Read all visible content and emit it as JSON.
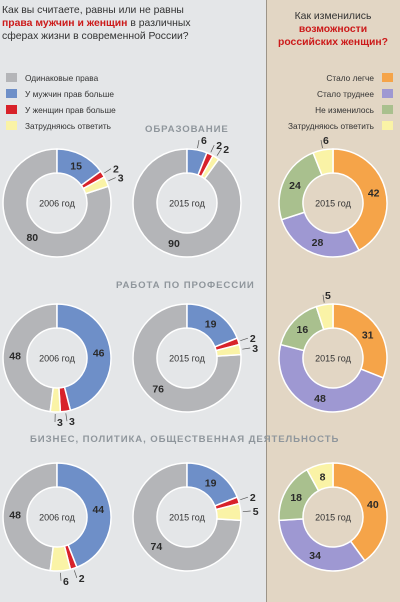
{
  "left_question": {
    "part1": "Как вы считаете, равны или не равны",
    "highlight": "права мужчин и женщин",
    "part2": " в различных",
    "line3": "сферах жизни в современной России?"
  },
  "right_question": {
    "line1": "Как изменились",
    "highlight1": "возможности",
    "highlight2": "российских женщин?"
  },
  "legend_left": [
    {
      "label": "Одинаковые права",
      "color": "#b4b5b8"
    },
    {
      "label": "У мужчин прав больше",
      "color": "#6e8fc8"
    },
    {
      "label": "У женщин прав больше",
      "color": "#d8222a"
    },
    {
      "label": "Затрудняюсь ответить",
      "color": "#faf3a6"
    }
  ],
  "legend_right": [
    {
      "label": "Стало легче",
      "color": "#f5a449"
    },
    {
      "label": "Стало труднее",
      "color": "#9e98d2"
    },
    {
      "label": "Не изменилось",
      "color": "#a9c08e"
    },
    {
      "label": "Затрудняюсь ответить",
      "color": "#faf3a6"
    }
  ],
  "sections": [
    {
      "title": "ОБРАЗОВАНИЕ"
    },
    {
      "title": "РАБОТА ПО ПРОФЕССИИ"
    },
    {
      "title": "БИЗНЕС, ПОЛИТИКА, ОБЩЕСТВЕННАЯ ДЕЯТЕЛЬНОСТЬ"
    }
  ],
  "chart_data": [
    {
      "type": "pie",
      "center_label": "2006 год",
      "categories": [
        "Одинаковые права",
        "У мужчин прав больше",
        "У женщин прав больше",
        "Затрудняюсь ответить"
      ],
      "values": [
        80,
        15,
        2,
        3
      ]
    },
    {
      "type": "pie",
      "center_label": "2015 год",
      "categories": [
        "Одинаковые права",
        "У мужчин прав больше",
        "У женщин прав больше",
        "Затрудняюсь ответить"
      ],
      "values": [
        90,
        6,
        2,
        2
      ]
    },
    {
      "type": "pie",
      "center_label": "2015 год",
      "categories": [
        "Стало легче",
        "Стало труднее",
        "Не изменилось",
        "Затрудняюсь ответить"
      ],
      "values": [
        42,
        28,
        24,
        6
      ]
    },
    {
      "type": "pie",
      "center_label": "2006 год",
      "categories": [
        "Одинаковые права",
        "У мужчин прав больше",
        "У женщин прав больше",
        "Затрудняюсь ответить"
      ],
      "values": [
        48,
        46,
        3,
        3
      ]
    },
    {
      "type": "pie",
      "center_label": "2015 год",
      "categories": [
        "Одинаковые права",
        "У мужчин прав больше",
        "У женщин прав больше",
        "Затрудняюсь ответить"
      ],
      "values": [
        76,
        19,
        2,
        3
      ]
    },
    {
      "type": "pie",
      "center_label": "2015 год",
      "categories": [
        "Стало легче",
        "Стало труднее",
        "Не изменилось",
        "Затрудняюсь ответить"
      ],
      "values": [
        31,
        48,
        16,
        5
      ]
    },
    {
      "type": "pie",
      "center_label": "2006 год",
      "categories": [
        "Одинаковые права",
        "У мужчин прав больше",
        "У женщин прав больше",
        "Затрудняюсь ответить"
      ],
      "values": [
        48,
        44,
        2,
        6
      ]
    },
    {
      "type": "pie",
      "center_label": "2015 год",
      "categories": [
        "Одинаковые права",
        "У мужчин прав больше",
        "У женщин прав больше",
        "Затрудняюсь ответить"
      ],
      "values": [
        74,
        19,
        2,
        5
      ]
    },
    {
      "type": "pie",
      "center_label": "2015 год",
      "categories": [
        "Стало легче",
        "Стало труднее",
        "Не изменилось",
        "Затрудняюсь ответить"
      ],
      "values": [
        40,
        34,
        18,
        8
      ]
    }
  ]
}
